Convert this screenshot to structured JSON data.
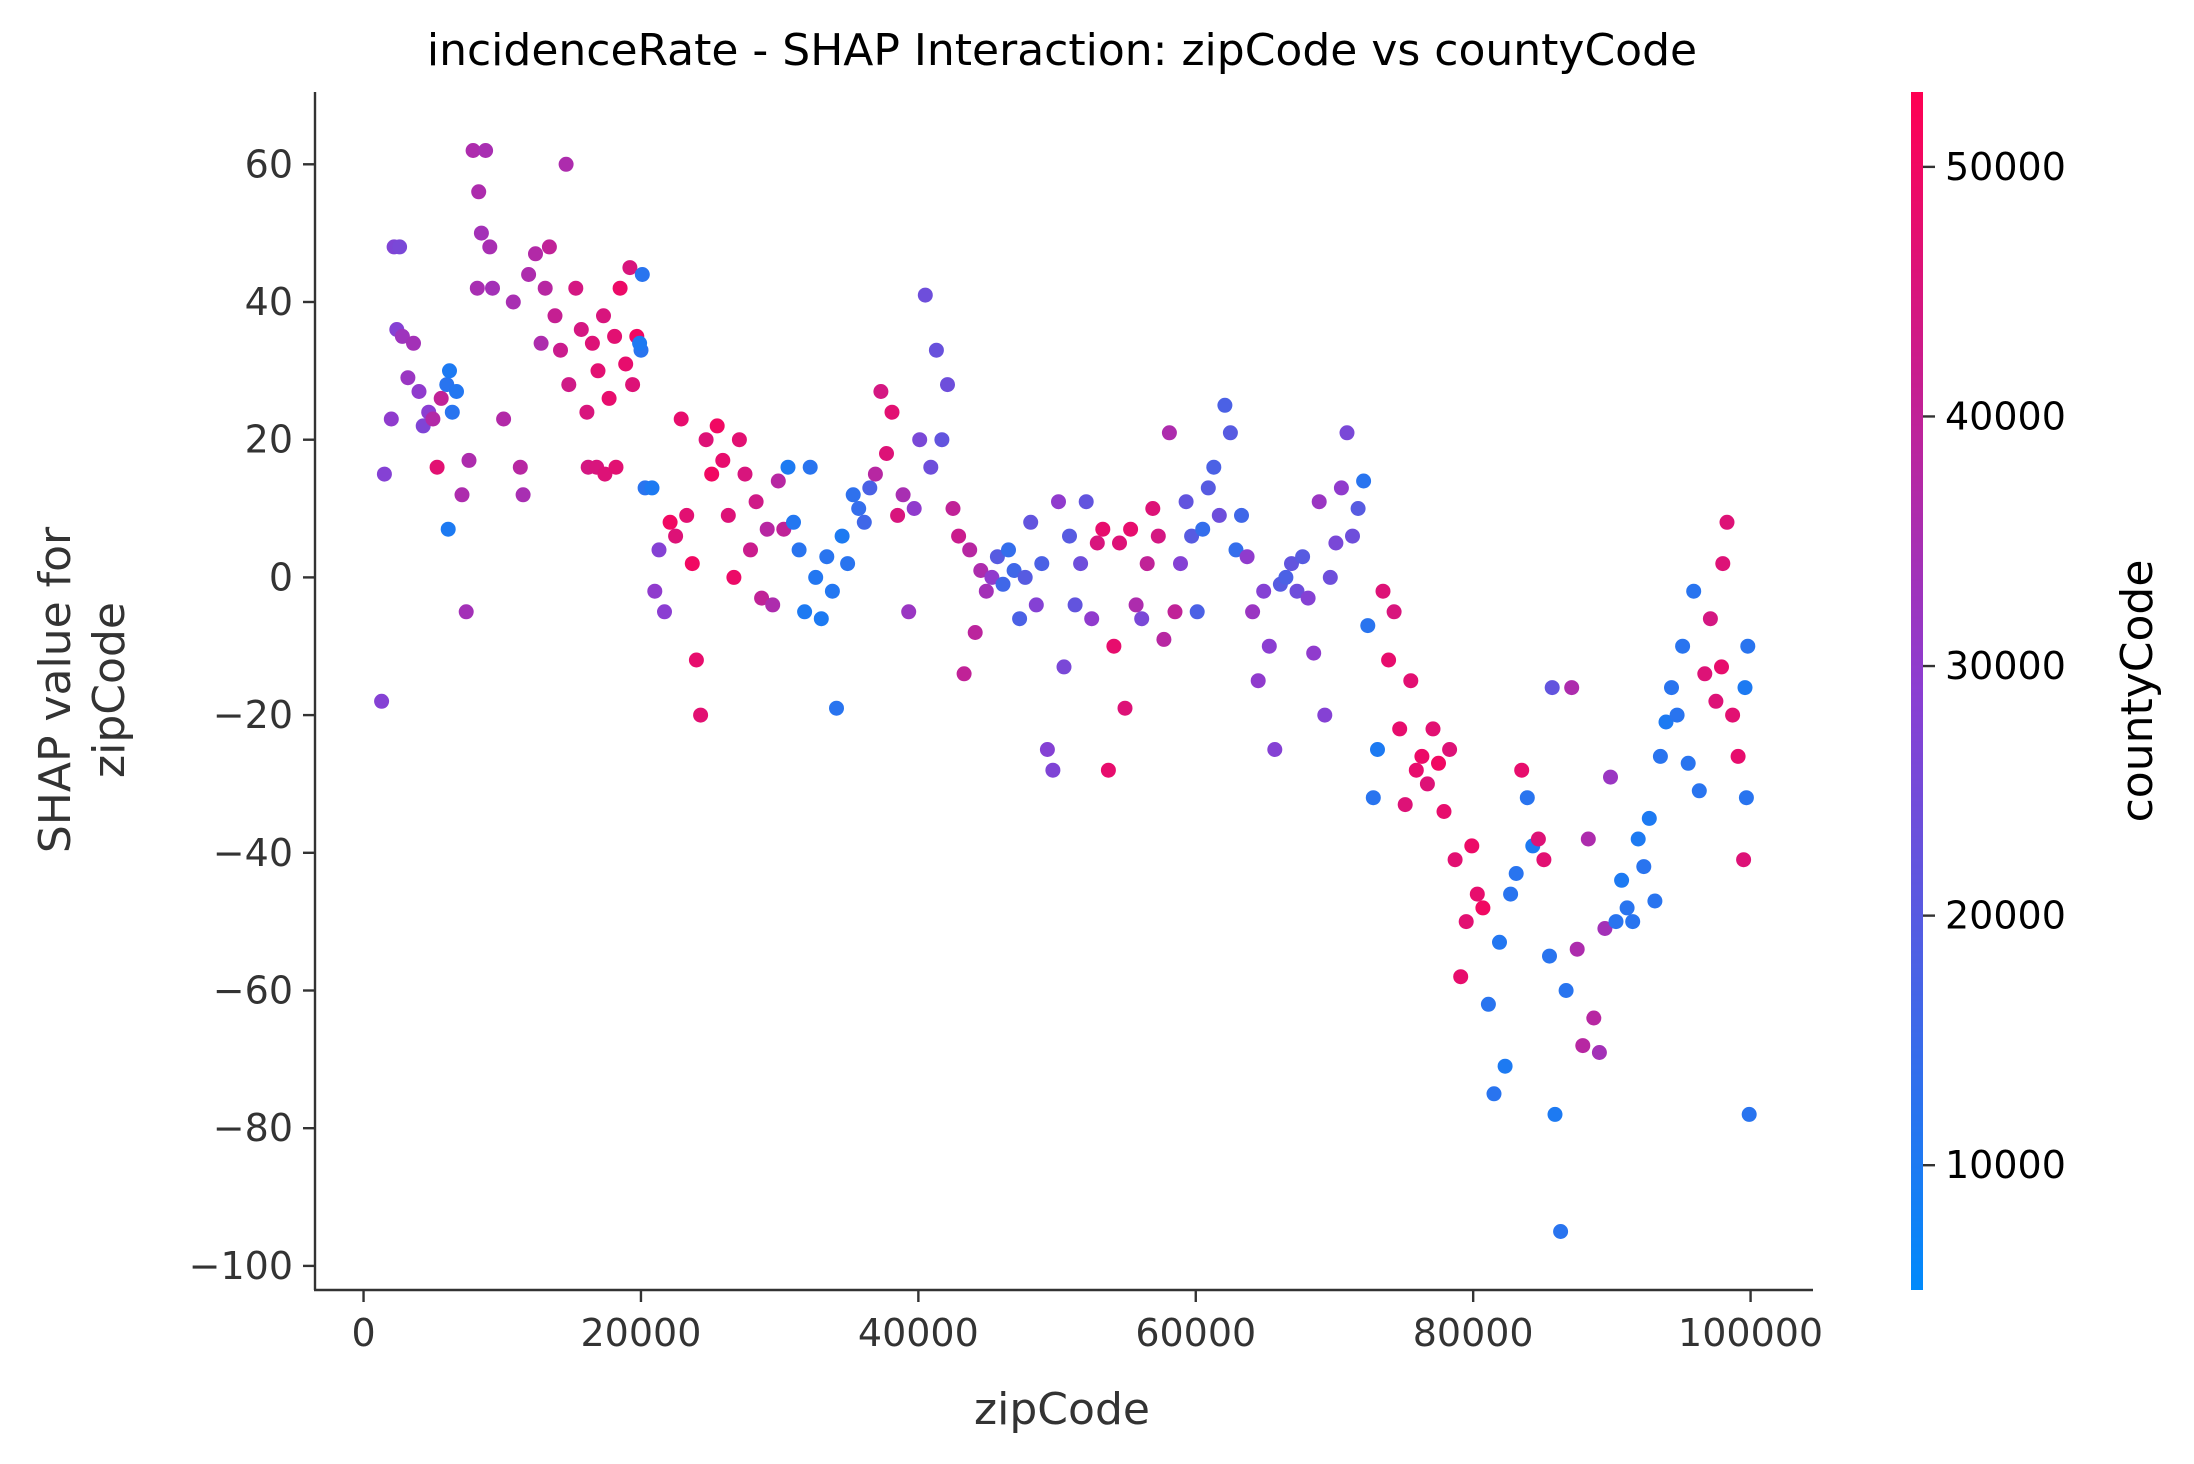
{
  "chart_data": {
    "type": "scatter",
    "title": "incidenceRate - SHAP Interaction: zipCode vs countyCode",
    "xlabel": "zipCode",
    "ylabel_lines": [
      "SHAP value for",
      "zipCode"
    ],
    "xlim": [
      -3500,
      104500
    ],
    "ylim": [
      -103.5,
      70.5
    ],
    "xticks": [
      0,
      20000,
      40000,
      60000,
      80000,
      100000
    ],
    "xtick_labels": [
      "0",
      "20000",
      "40000",
      "60000",
      "80000",
      "100000"
    ],
    "yticks": [
      60,
      40,
      20,
      0,
      -20,
      -40,
      -60,
      -80,
      -100
    ],
    "ytick_labels": [
      "60",
      "40",
      "20",
      "0",
      "−20",
      "−40",
      "−60",
      "−80",
      "−100"
    ],
    "colorbar": {
      "label": "countyCode",
      "range": [
        5000,
        53000
      ],
      "ticks": [
        10000,
        20000,
        30000,
        40000,
        50000
      ],
      "tick_labels": [
        "10000",
        "20000",
        "30000",
        "40000",
        "50000"
      ],
      "color_low": "#008afb",
      "color_mid": "#8b3ed2",
      "color_high": "#ff0052"
    },
    "grid": false,
    "legend": "none",
    "points": [
      [
        1300,
        -18,
        28000
      ],
      [
        1500,
        15,
        28000
      ],
      [
        2000,
        23,
        30000
      ],
      [
        2200,
        48,
        27000
      ],
      [
        2600,
        48,
        26000
      ],
      [
        2400,
        36,
        28000
      ],
      [
        2800,
        35,
        33000
      ],
      [
        3200,
        29,
        32000
      ],
      [
        3600,
        34,
        34000
      ],
      [
        4000,
        27,
        30000
      ],
      [
        4300,
        22,
        27000
      ],
      [
        4700,
        24,
        29000
      ],
      [
        5000,
        23,
        37000
      ],
      [
        5300,
        16,
        47000
      ],
      [
        5600,
        26,
        40000
      ],
      [
        6000,
        28,
        12000
      ],
      [
        6200,
        30,
        10000
      ],
      [
        6400,
        24,
        12000
      ],
      [
        6700,
        27,
        11000
      ],
      [
        6100,
        7,
        10000
      ],
      [
        7100,
        12,
        36000
      ],
      [
        7400,
        -5,
        34000
      ],
      [
        7600,
        17,
        36000
      ],
      [
        7900,
        62,
        36000
      ],
      [
        8300,
        56,
        36000
      ],
      [
        8500,
        50,
        34000
      ],
      [
        8800,
        62,
        35000
      ],
      [
        9100,
        48,
        35000
      ],
      [
        8200,
        42,
        35000
      ],
      [
        9300,
        42,
        34000
      ],
      [
        10100,
        23,
        37000
      ],
      [
        10800,
        40,
        35000
      ],
      [
        11300,
        16,
        38000
      ],
      [
        11500,
        12,
        35000
      ],
      [
        11900,
        44,
        36000
      ],
      [
        12400,
        47,
        37000
      ],
      [
        12800,
        34,
        36000
      ],
      [
        13100,
        42,
        38000
      ],
      [
        13400,
        48,
        40000
      ],
      [
        13800,
        38,
        41000
      ],
      [
        14200,
        33,
        42000
      ],
      [
        14600,
        60,
        36000
      ],
      [
        14800,
        28,
        43000
      ],
      [
        15300,
        42,
        44000
      ],
      [
        15700,
        36,
        44000
      ],
      [
        16100,
        24,
        45000
      ],
      [
        16500,
        34,
        46000
      ],
      [
        16900,
        30,
        47000
      ],
      [
        17300,
        38,
        45000
      ],
      [
        17700,
        26,
        48000
      ],
      [
        18100,
        35,
        47000
      ],
      [
        18500,
        42,
        49000
      ],
      [
        18900,
        31,
        48000
      ],
      [
        19200,
        45,
        45000
      ],
      [
        19400,
        28,
        46000
      ],
      [
        19700,
        35,
        50000
      ],
      [
        20000,
        33,
        12000
      ],
      [
        20100,
        44,
        12000
      ],
      [
        19900,
        34,
        10000
      ],
      [
        16200,
        16,
        44000
      ],
      [
        16800,
        16,
        45000
      ],
      [
        17400,
        15,
        46000
      ],
      [
        18200,
        16,
        47000
      ],
      [
        20300,
        13,
        12000
      ],
      [
        20800,
        13,
        10000
      ],
      [
        21000,
        -2,
        30000
      ],
      [
        21300,
        4,
        28000
      ],
      [
        21700,
        -5,
        29000
      ],
      [
        22100,
        8,
        50000
      ],
      [
        22500,
        6,
        46000
      ],
      [
        22900,
        23,
        48000
      ],
      [
        23300,
        9,
        47000
      ],
      [
        23700,
        2,
        50000
      ],
      [
        24000,
        -12,
        48000
      ],
      [
        24300,
        -20,
        47000
      ],
      [
        24700,
        20,
        46000
      ],
      [
        25100,
        15,
        50000
      ],
      [
        25500,
        22,
        50000
      ],
      [
        25900,
        17,
        48000
      ],
      [
        26300,
        9,
        46000
      ],
      [
        26700,
        0,
        49000
      ],
      [
        27100,
        20,
        47000
      ],
      [
        27500,
        15,
        45000
      ],
      [
        27900,
        4,
        42000
      ],
      [
        28300,
        11,
        43000
      ],
      [
        28700,
        -3,
        40000
      ],
      [
        29100,
        7,
        38000
      ],
      [
        29500,
        -4,
        36000
      ],
      [
        29900,
        14,
        38000
      ],
      [
        30300,
        7,
        40000
      ],
      [
        30600,
        16,
        10000
      ],
      [
        31000,
        8,
        11000
      ],
      [
        31400,
        4,
        12000
      ],
      [
        31800,
        -5,
        10000
      ],
      [
        32200,
        16,
        12000
      ],
      [
        32600,
        0,
        11000
      ],
      [
        33000,
        -6,
        10000
      ],
      [
        33400,
        3,
        12000
      ],
      [
        33800,
        -2,
        11000
      ],
      [
        34100,
        -19,
        12000
      ],
      [
        34500,
        6,
        10000
      ],
      [
        34900,
        2,
        12000
      ],
      [
        35300,
        12,
        13000
      ],
      [
        35700,
        10,
        14000
      ],
      [
        36100,
        8,
        16000
      ],
      [
        36500,
        13,
        18000
      ],
      [
        36900,
        15,
        38000
      ],
      [
        37300,
        27,
        44000
      ],
      [
        37700,
        18,
        46000
      ],
      [
        38100,
        24,
        47000
      ],
      [
        38500,
        9,
        45000
      ],
      [
        38900,
        12,
        35000
      ],
      [
        39300,
        -5,
        32000
      ],
      [
        39700,
        10,
        30000
      ],
      [
        40100,
        20,
        26000
      ],
      [
        40500,
        41,
        24000
      ],
      [
        40900,
        16,
        24000
      ],
      [
        41300,
        33,
        23000
      ],
      [
        41700,
        20,
        22000
      ],
      [
        42100,
        28,
        24000
      ],
      [
        42500,
        10,
        40000
      ],
      [
        42900,
        6,
        42000
      ],
      [
        43300,
        -14,
        40000
      ],
      [
        43700,
        4,
        38000
      ],
      [
        44100,
        -8,
        39000
      ],
      [
        44500,
        1,
        36000
      ],
      [
        44900,
        -2,
        34000
      ],
      [
        45300,
        0,
        30000
      ],
      [
        45700,
        3,
        20000
      ],
      [
        46100,
        -1,
        16000
      ],
      [
        46500,
        4,
        14000
      ],
      [
        46900,
        1,
        16000
      ],
      [
        47300,
        -6,
        18000
      ],
      [
        47700,
        0,
        20000
      ],
      [
        48100,
        8,
        22000
      ],
      [
        48500,
        -4,
        28000
      ],
      [
        48900,
        2,
        18000
      ],
      [
        49300,
        -25,
        28000
      ],
      [
        49700,
        -28,
        27000
      ],
      [
        50100,
        11,
        30000
      ],
      [
        50500,
        -13,
        26000
      ],
      [
        50900,
        6,
        20000
      ],
      [
        51300,
        -4,
        22000
      ],
      [
        51700,
        2,
        24000
      ],
      [
        52100,
        11,
        22000
      ],
      [
        52500,
        -6,
        30000
      ],
      [
        52900,
        5,
        45000
      ],
      [
        53300,
        7,
        48000
      ],
      [
        53700,
        -28,
        48000
      ],
      [
        54100,
        -10,
        48000
      ],
      [
        54500,
        5,
        46000
      ],
      [
        54900,
        -19,
        46000
      ],
      [
        55300,
        7,
        48000
      ],
      [
        55700,
        -4,
        36000
      ],
      [
        56100,
        -6,
        26000
      ],
      [
        56500,
        2,
        40000
      ],
      [
        56900,
        10,
        46000
      ],
      [
        57300,
        6,
        44000
      ],
      [
        57700,
        -9,
        38000
      ],
      [
        58100,
        21,
        36000
      ],
      [
        58500,
        -5,
        40000
      ],
      [
        58900,
        2,
        28000
      ],
      [
        59300,
        11,
        22000
      ],
      [
        59700,
        6,
        20000
      ],
      [
        60100,
        -5,
        18000
      ],
      [
        60500,
        7,
        14000
      ],
      [
        60900,
        13,
        20000
      ],
      [
        61300,
        16,
        18000
      ],
      [
        61700,
        9,
        24000
      ],
      [
        62100,
        25,
        18000
      ],
      [
        62500,
        21,
        20000
      ],
      [
        62900,
        4,
        14000
      ],
      [
        63300,
        9,
        16000
      ],
      [
        63700,
        3,
        30000
      ],
      [
        64100,
        -5,
        32000
      ],
      [
        64500,
        -15,
        30000
      ],
      [
        64900,
        -2,
        28000
      ],
      [
        65300,
        -10,
        29000
      ],
      [
        65700,
        -25,
        28000
      ],
      [
        66100,
        -1,
        20000
      ],
      [
        66500,
        0,
        18000
      ],
      [
        66900,
        2,
        22000
      ],
      [
        67300,
        -2,
        24000
      ],
      [
        67700,
        3,
        20000
      ],
      [
        68100,
        -3,
        28000
      ],
      [
        68500,
        -11,
        30000
      ],
      [
        68900,
        11,
        32000
      ],
      [
        69300,
        -20,
        28000
      ],
      [
        69700,
        0,
        24000
      ],
      [
        70100,
        5,
        26000
      ],
      [
        70500,
        13,
        30000
      ],
      [
        70900,
        21,
        26000
      ],
      [
        71300,
        6,
        24000
      ],
      [
        71700,
        10,
        20000
      ],
      [
        72100,
        14,
        12000
      ],
      [
        72400,
        -7,
        12000
      ],
      [
        72800,
        -32,
        12000
      ],
      [
        73100,
        -25,
        10000
      ],
      [
        73500,
        -2,
        46000
      ],
      [
        73900,
        -12,
        48000
      ],
      [
        74300,
        -5,
        45000
      ],
      [
        74700,
        -22,
        48000
      ],
      [
        75100,
        -33,
        46000
      ],
      [
        75500,
        -15,
        47000
      ],
      [
        75900,
        -28,
        48000
      ],
      [
        76300,
        -26,
        49000
      ],
      [
        76700,
        -30,
        46000
      ],
      [
        77100,
        -22,
        47000
      ],
      [
        77500,
        -27,
        50000
      ],
      [
        77900,
        -34,
        48000
      ],
      [
        78300,
        -25,
        46000
      ],
      [
        78700,
        -41,
        47000
      ],
      [
        79100,
        -58,
        48000
      ],
      [
        79500,
        -50,
        47000
      ],
      [
        79900,
        -39,
        49000
      ],
      [
        80300,
        -46,
        48000
      ],
      [
        80700,
        -48,
        50000
      ],
      [
        81100,
        -62,
        12000
      ],
      [
        81500,
        -75,
        12000
      ],
      [
        81900,
        -53,
        11000
      ],
      [
        82300,
        -71,
        10000
      ],
      [
        82700,
        -46,
        12000
      ],
      [
        83100,
        -43,
        12000
      ],
      [
        83500,
        -28,
        48000
      ],
      [
        83900,
        -32,
        12000
      ],
      [
        84300,
        -39,
        10000
      ],
      [
        84700,
        -38,
        46000
      ],
      [
        85100,
        -41,
        47000
      ],
      [
        85500,
        -55,
        12000
      ],
      [
        85900,
        -78,
        10000
      ],
      [
        86300,
        -95,
        12000
      ],
      [
        86700,
        -60,
        12000
      ],
      [
        87100,
        -16,
        36000
      ],
      [
        87500,
        -54,
        36000
      ],
      [
        87900,
        -68,
        38000
      ],
      [
        88300,
        -38,
        36000
      ],
      [
        88700,
        -64,
        38000
      ],
      [
        89100,
        -69,
        34000
      ],
      [
        89500,
        -51,
        34000
      ],
      [
        89900,
        -29,
        32000
      ],
      [
        90300,
        -50,
        12000
      ],
      [
        90700,
        -44,
        10000
      ],
      [
        91100,
        -48,
        12000
      ],
      [
        91500,
        -50,
        12000
      ],
      [
        91900,
        -38,
        10000
      ],
      [
        92300,
        -42,
        12000
      ],
      [
        92700,
        -35,
        10000
      ],
      [
        93100,
        -47,
        12000
      ],
      [
        93500,
        -26,
        12000
      ],
      [
        93900,
        -21,
        10000
      ],
      [
        94300,
        -16,
        12000
      ],
      [
        94700,
        -20,
        12000
      ],
      [
        95100,
        -10,
        12000
      ],
      [
        95500,
        -27,
        12000
      ],
      [
        95900,
        -2,
        12000
      ],
      [
        96300,
        -31,
        12000
      ],
      [
        96700,
        -14,
        46000
      ],
      [
        97100,
        -6,
        44000
      ],
      [
        97500,
        -18,
        46000
      ],
      [
        97900,
        -13,
        48000
      ],
      [
        98300,
        8,
        46000
      ],
      [
        98700,
        -20,
        47000
      ],
      [
        99100,
        -26,
        48000
      ],
      [
        99500,
        -41,
        46000
      ],
      [
        99800,
        -10,
        12000
      ],
      [
        99900,
        -78,
        12000
      ],
      [
        99700,
        -32,
        12000
      ],
      [
        99600,
        -16,
        10000
      ],
      [
        98000,
        2,
        46000
      ],
      [
        85700,
        -16,
        22000
      ]
    ]
  }
}
